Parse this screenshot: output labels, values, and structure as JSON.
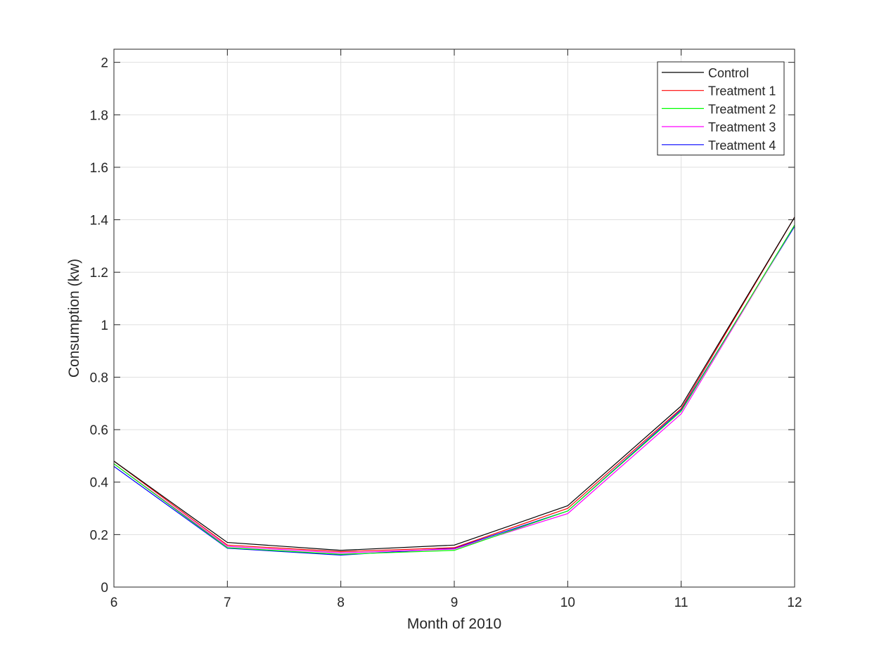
{
  "chart_data": {
    "type": "line",
    "title": "",
    "xlabel": "Month of 2010",
    "ylabel": "Consumption (kw)",
    "xlim": [
      6,
      12
    ],
    "ylim": [
      0,
      2.05
    ],
    "x_ticks": [
      6,
      7,
      8,
      9,
      10,
      11,
      12
    ],
    "y_ticks": [
      0,
      0.2,
      0.4,
      0.6,
      0.8,
      1,
      1.2,
      1.4,
      1.6,
      1.8,
      2
    ],
    "x_tick_labels": [
      "6",
      "7",
      "8",
      "9",
      "10",
      "11",
      "12"
    ],
    "y_tick_labels": [
      "0",
      "0.2",
      "0.4",
      "0.6",
      "0.8",
      "1",
      "1.2",
      "1.4",
      "1.6",
      "1.8",
      "2"
    ],
    "grid": true,
    "legend_position": "top-right",
    "x": [
      6,
      7,
      8,
      9,
      10,
      11,
      12
    ],
    "series": [
      {
        "name": "Control",
        "color": "#000000",
        "values": [
          0.48,
          0.17,
          0.14,
          0.16,
          0.31,
          0.69,
          1.41
        ]
      },
      {
        "name": "Treatment 1",
        "color": "#ff0000",
        "values": [
          0.48,
          0.16,
          0.135,
          0.15,
          0.3,
          0.68,
          1.41
        ]
      },
      {
        "name": "Treatment 2",
        "color": "#00ff00",
        "values": [
          0.47,
          0.15,
          0.125,
          0.14,
          0.29,
          0.67,
          1.38
        ]
      },
      {
        "name": "Treatment 3",
        "color": "#ff00ff",
        "values": [
          0.47,
          0.155,
          0.13,
          0.145,
          0.28,
          0.66,
          1.38
        ]
      },
      {
        "name": "Treatment 4",
        "color": "#0000ff",
        "values": [
          0.46,
          0.148,
          0.122,
          0.148,
          0.29,
          0.675,
          1.375
        ]
      }
    ]
  }
}
